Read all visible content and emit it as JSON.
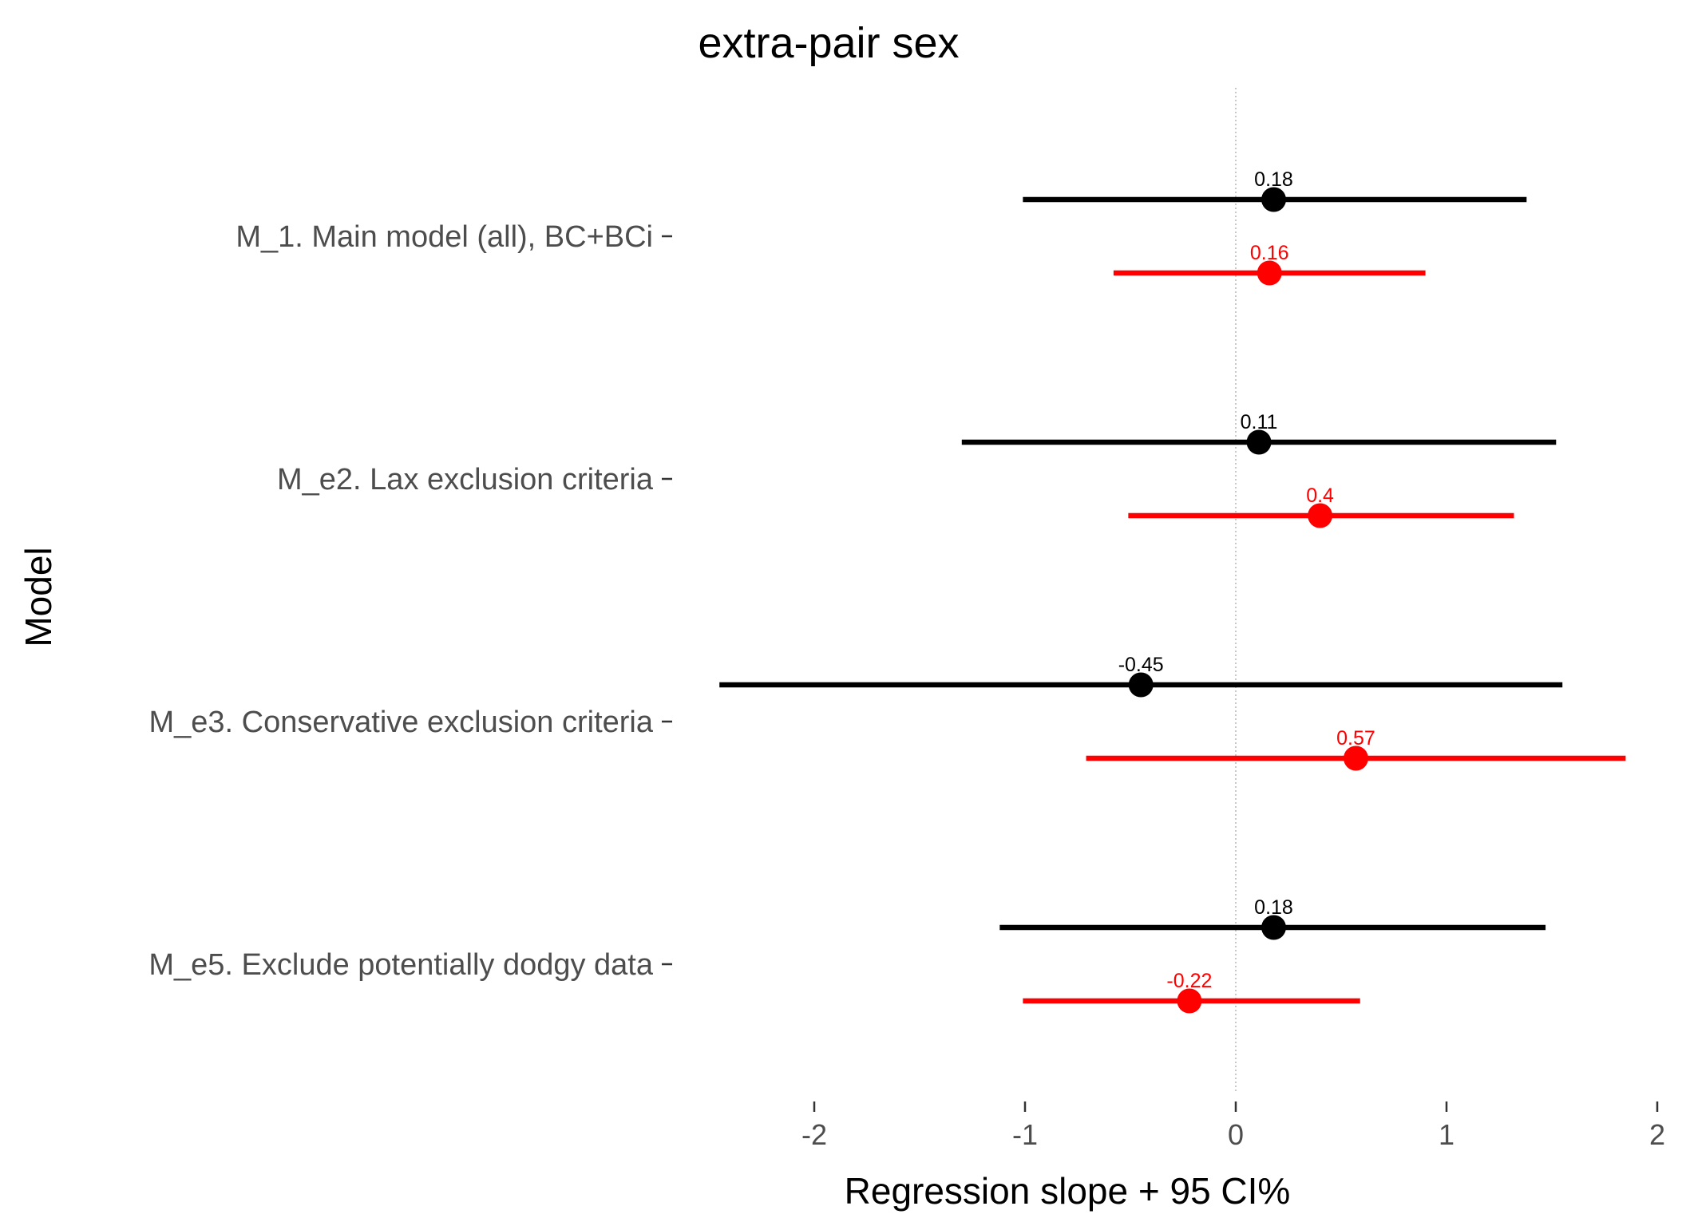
{
  "chart_data": {
    "type": "dot-and-whisker",
    "title": "extra-pair sex",
    "xlabel": "Regression slope + 95 CI%",
    "ylabel": "Model",
    "xlim": [
      -2.5,
      2
    ],
    "x_ticks": [
      -2,
      -1,
      0,
      1,
      2
    ],
    "x_tick_labels": [
      "-2",
      "-1",
      "0",
      "1",
      "2"
    ],
    "reference_line": 0,
    "grid": false,
    "legend": "none",
    "categories": [
      "M_1. Main model (all), BC+BCi",
      "M_e2. Lax exclusion criteria",
      "M_e3. Conservative exclusion criteria",
      "M_e5. Exclude potentially dodgy data"
    ],
    "series": [
      {
        "color": "#000000",
        "estimates": [
          0.18,
          0.11,
          -0.45,
          0.18
        ],
        "lower": [
          -1.01,
          -1.3,
          -2.45,
          -1.12
        ],
        "upper": [
          1.38,
          1.52,
          1.55,
          1.47
        ],
        "labels": [
          "0.18",
          "0.11",
          "-0.45",
          "0.18"
        ]
      },
      {
        "color": "#ff0000",
        "estimates": [
          0.16,
          0.4,
          0.57,
          -0.22
        ],
        "lower": [
          -0.58,
          -0.51,
          -0.71,
          -1.01
        ],
        "upper": [
          0.9,
          1.32,
          1.85,
          0.59
        ],
        "labels": [
          "0.16",
          "0.4",
          "0.57",
          "-0.22"
        ]
      }
    ]
  }
}
